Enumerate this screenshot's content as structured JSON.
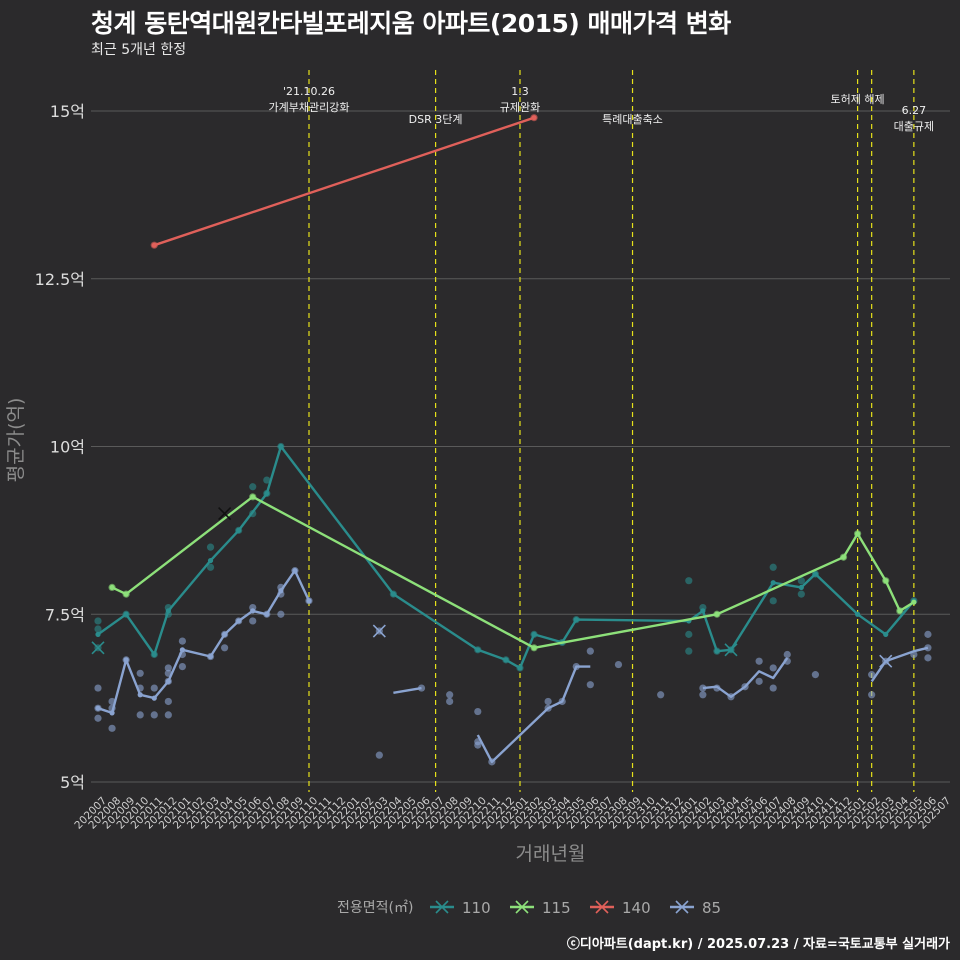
{
  "title": "청계 동탄역대원칸타빌포레지움 아파트(2015) 매매가격 변화",
  "subtitle": "최근 5개년 한정",
  "caption": "ⓒ디아파트(dapt.kr) / 2025.07.23 / 자료=국토교통부 실거래가",
  "chart_data": {
    "type": "line",
    "xlabel": "거래년월",
    "ylabel": "평균가(억)",
    "ylim": [
      4.75,
      15.6
    ],
    "yticks": [
      5,
      7.5,
      10,
      12.5,
      15
    ],
    "ytick_labels": [
      "5억",
      "7.5억",
      "10억",
      "12.5억",
      "15억"
    ],
    "x_categories": [
      "202007",
      "202008",
      "202009",
      "202010",
      "202011",
      "202012",
      "202101",
      "202102",
      "202103",
      "202104",
      "202105",
      "202106",
      "202107",
      "202108",
      "202109",
      "202110",
      "202111",
      "202112",
      "202201",
      "202202",
      "202203",
      "202204",
      "202205",
      "202206",
      "202207",
      "202208",
      "202209",
      "202210",
      "202211",
      "202212",
      "202301",
      "202302",
      "202303",
      "202304",
      "202305",
      "202306",
      "202307",
      "202308",
      "202309",
      "202310",
      "202311",
      "202312",
      "202401",
      "202402",
      "202403",
      "202404",
      "202405",
      "202406",
      "202407",
      "202408",
      "202409",
      "202410",
      "202411",
      "202412",
      "202501",
      "202502",
      "202503",
      "202504",
      "202505",
      "202506",
      "202507"
    ],
    "legend_title": "전용면적(㎡)",
    "legend_position": "bottom",
    "series": [
      {
        "name": "110",
        "color": "#2a8c8c",
        "line": [
          [
            0,
            7.2
          ],
          [
            2,
            7.5
          ],
          [
            4,
            6.9
          ],
          [
            5,
            7.55
          ],
          [
            8,
            8.3
          ],
          [
            10,
            8.75
          ],
          [
            12,
            9.3
          ],
          [
            13,
            10.0
          ],
          [
            21,
            7.8
          ],
          [
            27,
            6.97
          ],
          [
            29,
            6.82
          ],
          [
            30,
            6.7
          ],
          [
            31,
            7.2
          ],
          [
            33,
            7.08
          ],
          [
            34,
            7.42
          ],
          [
            42,
            7.4
          ],
          [
            43,
            7.55
          ],
          [
            44,
            6.95
          ],
          [
            45,
            6.97
          ],
          [
            48,
            7.97
          ],
          [
            50,
            7.9
          ],
          [
            51,
            8.1
          ],
          [
            54,
            7.5
          ],
          [
            56,
            7.2
          ],
          [
            58,
            7.7
          ]
        ],
        "points": [
          [
            0,
            7.0
          ],
          [
            0,
            7.28
          ],
          [
            0,
            7.4
          ],
          [
            2,
            7.5
          ],
          [
            4,
            6.9
          ],
          [
            5,
            7.5
          ],
          [
            5,
            7.6
          ],
          [
            8,
            8.2
          ],
          [
            8,
            8.5
          ],
          [
            10,
            8.75
          ],
          [
            11,
            9.0
          ],
          [
            11,
            9.4
          ],
          [
            12,
            9.5
          ],
          [
            12,
            9.3
          ],
          [
            13,
            10.0
          ],
          [
            21,
            7.8
          ],
          [
            27,
            6.97
          ],
          [
            29,
            6.82
          ],
          [
            30,
            6.7
          ],
          [
            31,
            7.2
          ],
          [
            33,
            7.08
          ],
          [
            34,
            7.42
          ],
          [
            42,
            8.0
          ],
          [
            42,
            7.2
          ],
          [
            42,
            6.95
          ],
          [
            43,
            7.6
          ],
          [
            44,
            6.95
          ],
          [
            45,
            6.97
          ],
          [
            48,
            7.7
          ],
          [
            48,
            8.2
          ],
          [
            50,
            7.8
          ],
          [
            50,
            8.0
          ],
          [
            51,
            8.1
          ],
          [
            58,
            7.7
          ]
        ]
      },
      {
        "name": "115",
        "color": "#8de07a",
        "line": [
          [
            1,
            7.9
          ],
          [
            2,
            7.8
          ],
          [
            11,
            9.25
          ],
          [
            31,
            7.0
          ],
          [
            44,
            7.5
          ],
          [
            53,
            8.35
          ],
          [
            54,
            8.7
          ],
          [
            56,
            8.0
          ],
          [
            57,
            7.55
          ],
          [
            58,
            7.68
          ]
        ],
        "points": [
          [
            1,
            7.9
          ],
          [
            2,
            7.8
          ],
          [
            11,
            9.25
          ],
          [
            31,
            7.0
          ],
          [
            44,
            7.5
          ],
          [
            53,
            8.35
          ],
          [
            54,
            8.7
          ],
          [
            56,
            8.0
          ],
          [
            57,
            7.55
          ]
        ]
      },
      {
        "name": "140",
        "color": "#e0605a",
        "line": [
          [
            4,
            13.0
          ],
          [
            31,
            14.9
          ]
        ],
        "points": [
          [
            4,
            13.0
          ],
          [
            31,
            14.9
          ]
        ]
      },
      {
        "name": "85",
        "color": "#8aa3d0",
        "line": [
          [
            0,
            6.1
          ],
          [
            1,
            6.03
          ],
          [
            2,
            6.82
          ],
          [
            3,
            6.3
          ],
          [
            4,
            6.25
          ],
          [
            5,
            6.5
          ],
          [
            6,
            6.97
          ],
          [
            8,
            6.87
          ],
          [
            9,
            7.2
          ],
          [
            10,
            7.4
          ],
          [
            11,
            7.55
          ],
          [
            12,
            7.5
          ],
          [
            13,
            7.85
          ],
          [
            14,
            8.15
          ],
          [
            15,
            7.7
          ]
        ],
        "line2": [
          [
            21,
            6.33
          ],
          [
            23,
            6.4
          ]
        ],
        "line3": [
          [
            27,
            5.7
          ],
          [
            28,
            5.3
          ],
          [
            32,
            6.1
          ],
          [
            33,
            6.2
          ],
          [
            34,
            6.72
          ],
          [
            35,
            6.72
          ]
        ],
        "line4": [
          [
            43,
            6.4
          ],
          [
            44,
            6.42
          ],
          [
            45,
            6.27
          ],
          [
            46,
            6.42
          ],
          [
            47,
            6.65
          ],
          [
            48,
            6.55
          ],
          [
            49,
            6.85
          ]
        ],
        "line5": [
          [
            55,
            6.5
          ],
          [
            56,
            6.8
          ],
          [
            58,
            6.95
          ],
          [
            59,
            7.0
          ]
        ],
        "points": [
          [
            0,
            6.4
          ],
          [
            0,
            5.95
          ],
          [
            0,
            6.1
          ],
          [
            1,
            6.1
          ],
          [
            1,
            6.2
          ],
          [
            1,
            5.8
          ],
          [
            2,
            6.82
          ],
          [
            3,
            6.4
          ],
          [
            3,
            6.0
          ],
          [
            3,
            6.62
          ],
          [
            4,
            6.4
          ],
          [
            4,
            6.0
          ],
          [
            5,
            6.7
          ],
          [
            5,
            6.62
          ],
          [
            5,
            6.2
          ],
          [
            5,
            6.0
          ],
          [
            5,
            6.5
          ],
          [
            6,
            7.1
          ],
          [
            6,
            6.9
          ],
          [
            6,
            6.72
          ],
          [
            8,
            6.87
          ],
          [
            9,
            7.0
          ],
          [
            9,
            7.2
          ],
          [
            10,
            7.4
          ],
          [
            11,
            7.6
          ],
          [
            11,
            7.4
          ],
          [
            12,
            7.5
          ],
          [
            13,
            7.9
          ],
          [
            13,
            7.5
          ],
          [
            13,
            7.8
          ],
          [
            14,
            8.15
          ],
          [
            15,
            7.7
          ],
          [
            20,
            7.25
          ],
          [
            20,
            5.4
          ],
          [
            23,
            6.4
          ],
          [
            25,
            6.3
          ],
          [
            25,
            6.2
          ],
          [
            27,
            6.05
          ],
          [
            27,
            5.6
          ],
          [
            27,
            5.55
          ],
          [
            28,
            5.3
          ],
          [
            32,
            6.2
          ],
          [
            32,
            6.1
          ],
          [
            33,
            6.2
          ],
          [
            34,
            6.72
          ],
          [
            35,
            6.45
          ],
          [
            35,
            6.95
          ],
          [
            37,
            6.75
          ],
          [
            40,
            6.3
          ],
          [
            43,
            6.3
          ],
          [
            43,
            6.4
          ],
          [
            44,
            6.4
          ],
          [
            45,
            6.27
          ],
          [
            46,
            6.42
          ],
          [
            47,
            6.5
          ],
          [
            47,
            6.8
          ],
          [
            48,
            6.4
          ],
          [
            48,
            6.7
          ],
          [
            49,
            6.9
          ],
          [
            49,
            6.8
          ],
          [
            51,
            6.6
          ],
          [
            55,
            6.3
          ],
          [
            55,
            6.6
          ],
          [
            56,
            6.8
          ],
          [
            58,
            6.9
          ],
          [
            59,
            7.0
          ],
          [
            59,
            6.85
          ],
          [
            59,
            7.2
          ]
        ]
      }
    ],
    "x_markers": [
      {
        "label": "'21.10.26\n가계부채관리강화",
        "x": 15
      },
      {
        "label": "DSR 3단계",
        "x": 24
      },
      {
        "label": "1.3\n규제완화",
        "x": 30
      },
      {
        "label": "특례대출축소",
        "x": 38
      },
      {
        "label": "토허제 해제",
        "x": 54
      },
      {
        "label": "",
        "x": 55
      },
      {
        "label": "6.27\n대출규제",
        "x": 58
      }
    ],
    "grid": true
  }
}
